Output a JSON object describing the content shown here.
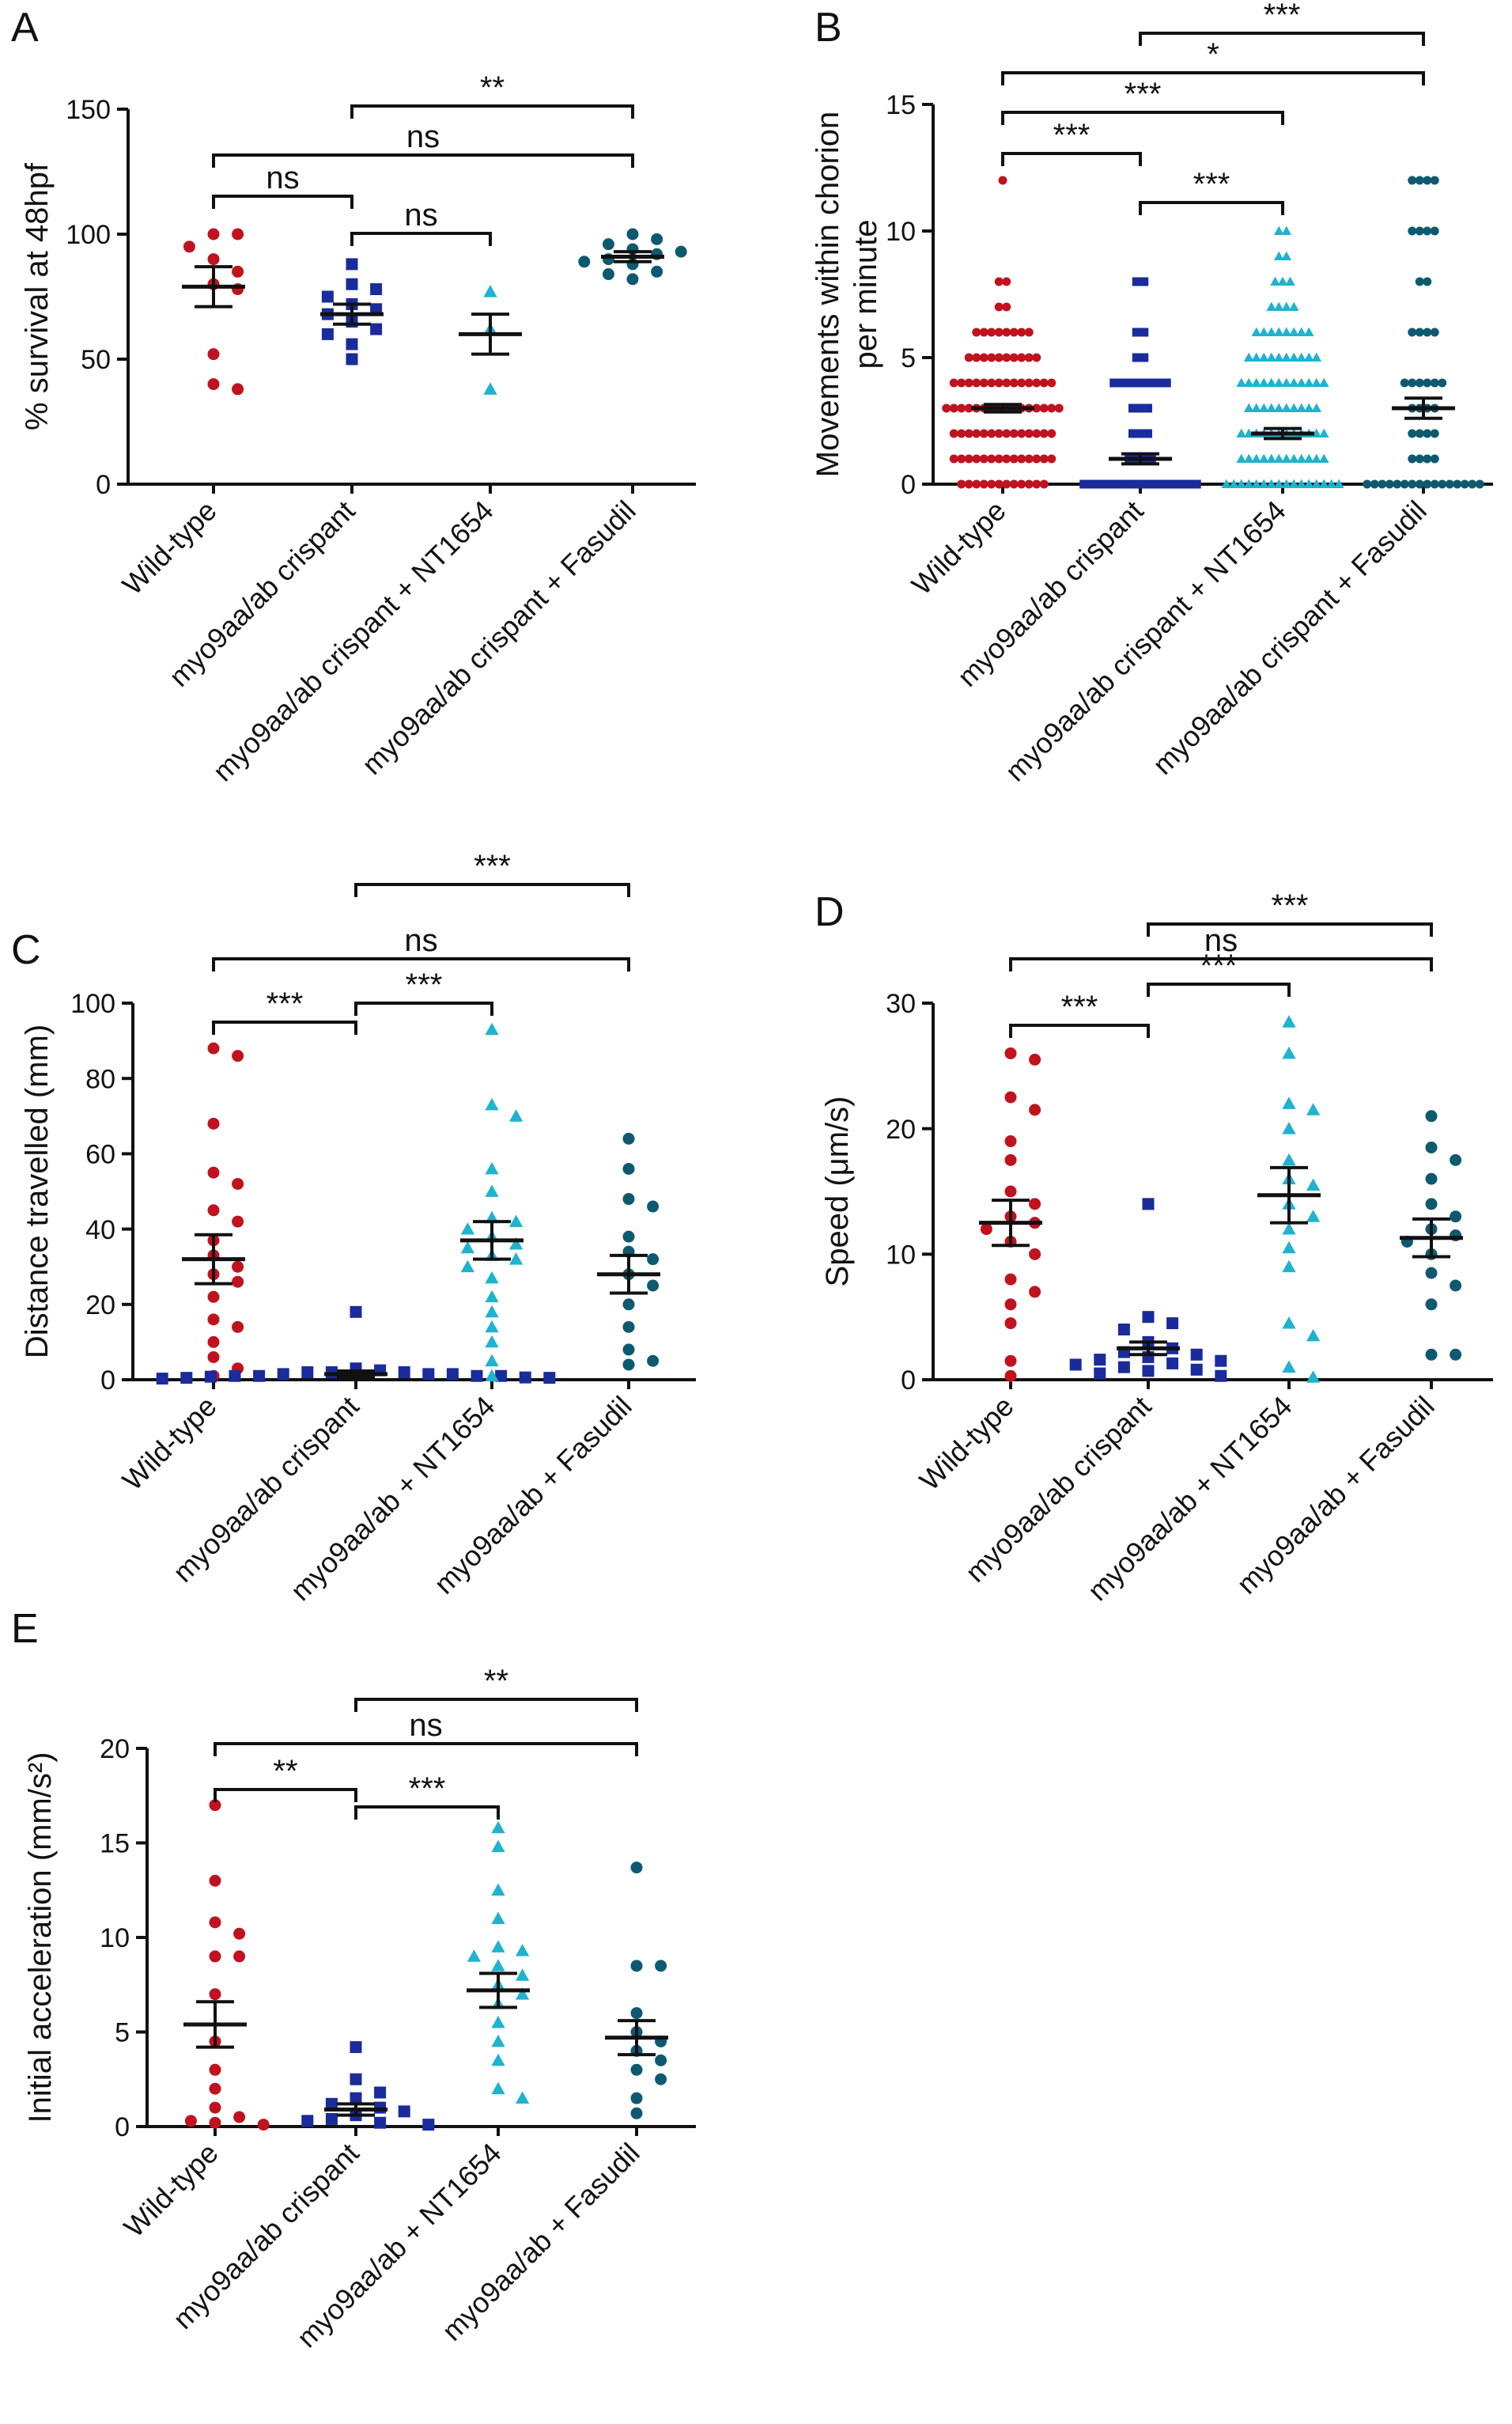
{
  "figure": {
    "background": "#ffffff",
    "axis_color": "#111111"
  },
  "group_colors": [
    "#c1121f",
    "#1a2b9c",
    "#1fb3cf",
    "#0d5a70"
  ],
  "chart_data": [
    {
      "panel": "A",
      "type": "scatter",
      "ylabel": "% survival at 48hpf",
      "ylim": [
        0,
        150
      ],
      "yticks": [
        0,
        50,
        100,
        150
      ],
      "categories": [
        "Wild-type",
        "myo9aa/ab crispant",
        "myo9aa/ab crispant + NT1654",
        "myo9aa/ab crispant + Fasudil"
      ],
      "markers": [
        "circle",
        "square",
        "triangle",
        "circle"
      ],
      "series": [
        {
          "name": "Wild-type",
          "mean": 79,
          "sem": 8,
          "values": [
            100,
            100,
            95,
            90,
            85,
            80,
            78,
            52,
            40,
            38
          ]
        },
        {
          "name": "myo9aa/ab crispant",
          "mean": 68,
          "sem": 4,
          "values": [
            88,
            80,
            78,
            75,
            72,
            70,
            68,
            65,
            62,
            60,
            56,
            50
          ]
        },
        {
          "name": "myo9aa/ab crispant + NT1654",
          "mean": 60,
          "sem": 8,
          "values": [
            77,
            62,
            38
          ]
        },
        {
          "name": "myo9aa/ab crispant + Fasudil",
          "mean": 91,
          "sem": 2,
          "values": [
            100,
            98,
            96,
            94,
            93,
            92,
            90,
            89,
            88,
            85,
            84,
            82
          ]
        }
      ],
      "comparisons": [
        {
          "a": 0,
          "b": 1,
          "label": "ns"
        },
        {
          "a": 1,
          "b": 2,
          "label": "ns"
        },
        {
          "a": 0,
          "b": 3,
          "label": "ns"
        },
        {
          "a": 1,
          "b": 3,
          "label": "**"
        }
      ]
    },
    {
      "panel": "B",
      "type": "scatter",
      "ylabel": [
        "Movements within chorion",
        "per minute"
      ],
      "ylim": [
        0,
        15
      ],
      "yticks": [
        0,
        5,
        10,
        15
      ],
      "categories": [
        "Wild-type",
        "myo9aa/ab crispant",
        "myo9aa/ab crispant + NT1654",
        "myo9aa/ab crispant + Fasudil"
      ],
      "markers": [
        "circle",
        "square",
        "triangle",
        "circle"
      ],
      "series": [
        {
          "name": "Wild-type",
          "mean": 3,
          "sem": 0.15,
          "counts": [
            [
              0,
              12
            ],
            [
              1,
              14
            ],
            [
              2,
              14
            ],
            [
              3,
              16
            ],
            [
              4,
              14
            ],
            [
              5,
              10
            ],
            [
              6,
              8
            ],
            [
              7,
              2
            ],
            [
              8,
              2
            ],
            [
              12,
              1
            ]
          ]
        },
        {
          "name": "myo9aa/ab crispant",
          "mean": 1,
          "sem": 0.2,
          "counts": [
            [
              0,
              16
            ],
            [
              1,
              4
            ],
            [
              2,
              3
            ],
            [
              3,
              3
            ],
            [
              4,
              8
            ],
            [
              5,
              2
            ],
            [
              6,
              2
            ],
            [
              8,
              2
            ]
          ]
        },
        {
          "name": "myo9aa/ab crispant + NT1654",
          "mean": 2,
          "sem": 0.2,
          "counts": [
            [
              0,
              16
            ],
            [
              1,
              12
            ],
            [
              2,
              12
            ],
            [
              3,
              10
            ],
            [
              4,
              12
            ],
            [
              5,
              10
            ],
            [
              6,
              8
            ],
            [
              7,
              4
            ],
            [
              8,
              3
            ],
            [
              9,
              2
            ],
            [
              10,
              2
            ]
          ]
        },
        {
          "name": "myo9aa/ab crispant + Fasudil",
          "mean": 3,
          "sem": 0.4,
          "counts": [
            [
              0,
              16
            ],
            [
              1,
              4
            ],
            [
              2,
              4
            ],
            [
              3,
              4
            ],
            [
              4,
              6
            ],
            [
              6,
              4
            ],
            [
              8,
              2
            ],
            [
              10,
              4
            ],
            [
              12,
              4
            ]
          ]
        }
      ],
      "comparisons": [
        {
          "a": 0,
          "b": 1,
          "label": "***"
        },
        {
          "a": 1,
          "b": 2,
          "label": "***"
        },
        {
          "a": 0,
          "b": 2,
          "label": "***"
        },
        {
          "a": 0,
          "b": 3,
          "label": "*"
        },
        {
          "a": 1,
          "b": 3,
          "label": "***"
        }
      ]
    },
    {
      "panel": "C",
      "type": "scatter",
      "ylabel": "Distance travelled (mm)",
      "ylim": [
        0,
        100
      ],
      "yticks": [
        0,
        20,
        40,
        60,
        80,
        100
      ],
      "categories": [
        "Wild-type",
        "myo9aa/ab crispant",
        "myo9aa/ab + NT1654",
        "myo9aa/ab + Fasudil"
      ],
      "markers": [
        "circle",
        "square",
        "triangle",
        "circle"
      ],
      "series": [
        {
          "name": "Wild-type",
          "mean": 32,
          "sem": 6.5,
          "values": [
            88,
            86,
            68,
            55,
            52,
            45,
            42,
            37,
            33,
            30,
            28,
            26,
            22,
            16,
            14,
            10,
            6,
            3,
            1
          ]
        },
        {
          "name": "myo9aa/ab crispant",
          "mean": 1.5,
          "sem": 0.8,
          "values": [
            18,
            3,
            2.5,
            2,
            2,
            2,
            1.5,
            1.5,
            1.5,
            1,
            1,
            1,
            1,
            0.8,
            0.6,
            0.5,
            0.5,
            0.3
          ]
        },
        {
          "name": "myo9aa/ab + NT1654",
          "mean": 37,
          "sem": 5,
          "values": [
            93,
            73,
            70,
            56,
            50,
            43,
            42,
            40,
            38,
            36,
            35,
            33,
            32,
            30,
            27,
            22,
            18,
            14,
            10,
            5,
            1
          ]
        },
        {
          "name": "myo9aa/ab + Fasudil",
          "mean": 28,
          "sem": 5,
          "values": [
            64,
            56,
            48,
            46,
            38,
            34,
            32,
            28,
            25,
            20,
            14,
            8,
            5,
            4
          ]
        }
      ],
      "comparisons": [
        {
          "a": 0,
          "b": 1,
          "label": "***"
        },
        {
          "a": 1,
          "b": 2,
          "label": "***"
        },
        {
          "a": 0,
          "b": 3,
          "label": "ns"
        },
        {
          "a": 1,
          "b": 3,
          "label": "***"
        }
      ]
    },
    {
      "panel": "D",
      "type": "scatter",
      "ylabel": "Speed (μm/s)",
      "ylim": [
        0,
        30
      ],
      "yticks": [
        0,
        10,
        20,
        30
      ],
      "categories": [
        "Wild-type",
        "myo9aa/ab crispant",
        "myo9aa/ab + NT1654",
        "myo9aa/ab + Fasudil"
      ],
      "markers": [
        "circle",
        "square",
        "triangle",
        "circle"
      ],
      "series": [
        {
          "name": "Wild-type",
          "mean": 12.5,
          "sem": 1.8,
          "values": [
            26,
            25.5,
            22.5,
            21.5,
            19,
            17.5,
            15,
            14,
            13,
            12.5,
            12,
            11,
            10,
            8,
            7,
            6,
            4.5,
            1.5,
            0.3
          ]
        },
        {
          "name": "myo9aa/ab crispant",
          "mean": 2.5,
          "sem": 0.5,
          "values": [
            14,
            5,
            4.5,
            4,
            3,
            2.5,
            2.2,
            2,
            1.8,
            1.6,
            1.5,
            1.3,
            1.2,
            1,
            0.8,
            0.7,
            0.5,
            0.3
          ]
        },
        {
          "name": "myo9aa/ab + NT1654",
          "mean": 14.7,
          "sem": 2.2,
          "values": [
            28.5,
            26,
            22,
            21.5,
            20,
            17.5,
            16,
            15.5,
            14,
            13,
            12,
            10.5,
            9,
            4.5,
            3.5,
            1,
            0.2
          ]
        },
        {
          "name": "myo9aa/ab + Fasudil",
          "mean": 11.3,
          "sem": 1.5,
          "values": [
            21,
            18.5,
            17.5,
            16,
            14,
            13,
            12,
            11.5,
            11,
            10,
            8.5,
            7.5,
            6,
            2,
            2
          ]
        }
      ],
      "comparisons": [
        {
          "a": 0,
          "b": 1,
          "label": "***"
        },
        {
          "a": 1,
          "b": 2,
          "label": "***"
        },
        {
          "a": 0,
          "b": 3,
          "label": "ns"
        },
        {
          "a": 1,
          "b": 3,
          "label": "***"
        }
      ]
    },
    {
      "panel": "E",
      "type": "scatter",
      "ylabel": "Initial acceleration (mm/s²)",
      "ylim": [
        0,
        20
      ],
      "yticks": [
        0,
        5,
        10,
        15,
        20
      ],
      "categories": [
        "Wild-type",
        "myo9aa/ab crispant",
        "myo9aa/ab + NT1654",
        "myo9aa/ab + Fasudil"
      ],
      "markers": [
        "circle",
        "square",
        "triangle",
        "circle"
      ],
      "series": [
        {
          "name": "Wild-type",
          "mean": 5.4,
          "sem": 1.2,
          "values": [
            17,
            13,
            10.8,
            10.2,
            9,
            9,
            7,
            4.5,
            3,
            2,
            1,
            0.5,
            0.3,
            0.2,
            0.1
          ]
        },
        {
          "name": "myo9aa/ab crispant",
          "mean": 0.9,
          "sem": 0.3,
          "values": [
            4.2,
            2.5,
            1.8,
            1.5,
            1.2,
            1,
            0.8,
            0.6,
            0.4,
            0.3,
            0.2,
            0.1
          ]
        },
        {
          "name": "myo9aa/ab + NT1654",
          "mean": 7.2,
          "sem": 0.9,
          "values": [
            15.8,
            14.8,
            12.5,
            11,
            9.5,
            9.3,
            9,
            8.5,
            8,
            7.5,
            7,
            6.5,
            5.5,
            4.5,
            3.5,
            2,
            1.5
          ]
        },
        {
          "name": "myo9aa/ab + Fasudil",
          "mean": 4.7,
          "sem": 0.9,
          "values": [
            13.7,
            8.5,
            8.5,
            6,
            5,
            4.5,
            4,
            3.5,
            3,
            2.5,
            1.5,
            0.7
          ]
        }
      ],
      "comparisons": [
        {
          "a": 0,
          "b": 1,
          "label": "**"
        },
        {
          "a": 1,
          "b": 2,
          "label": "***"
        },
        {
          "a": 0,
          "b": 3,
          "label": "ns"
        },
        {
          "a": 1,
          "b": 3,
          "label": "**"
        }
      ]
    }
  ]
}
